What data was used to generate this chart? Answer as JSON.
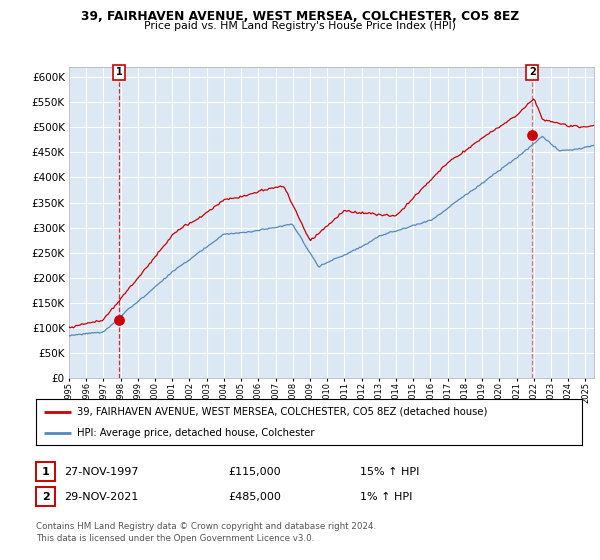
{
  "title_line1": "39, FAIRHAVEN AVENUE, WEST MERSEA, COLCHESTER, CO5 8EZ",
  "title_line2": "Price paid vs. HM Land Registry's House Price Index (HPI)",
  "legend_line1": "39, FAIRHAVEN AVENUE, WEST MERSEA, COLCHESTER, CO5 8EZ (detached house)",
  "legend_line2": "HPI: Average price, detached house, Colchester",
  "footer": "Contains HM Land Registry data © Crown copyright and database right 2024.\nThis data is licensed under the Open Government Licence v3.0.",
  "sale1_label": "1",
  "sale1_date": "27-NOV-1997",
  "sale1_price": "£115,000",
  "sale1_hpi": "15% ↑ HPI",
  "sale2_label": "2",
  "sale2_date": "29-NOV-2021",
  "sale2_price": "£485,000",
  "sale2_hpi": "1% ↑ HPI",
  "ylim": [
    0,
    620000
  ],
  "yticks": [
    0,
    50000,
    100000,
    150000,
    200000,
    250000,
    300000,
    350000,
    400000,
    450000,
    500000,
    550000,
    600000
  ],
  "ytick_labels": [
    "£0",
    "£50K",
    "£100K",
    "£150K",
    "£200K",
    "£250K",
    "£300K",
    "£350K",
    "£400K",
    "£450K",
    "£500K",
    "£550K",
    "£600K"
  ],
  "red_color": "#cc0000",
  "blue_color": "#5588bb",
  "chart_bg": "#dce9f5",
  "background_color": "#ffffff",
  "grid_color": "#ffffff",
  "sale1_x": 1997.91,
  "sale1_y": 115000,
  "sale2_x": 2021.91,
  "sale2_y": 485000,
  "xlim_left": 1995.0,
  "xlim_right": 2025.5
}
